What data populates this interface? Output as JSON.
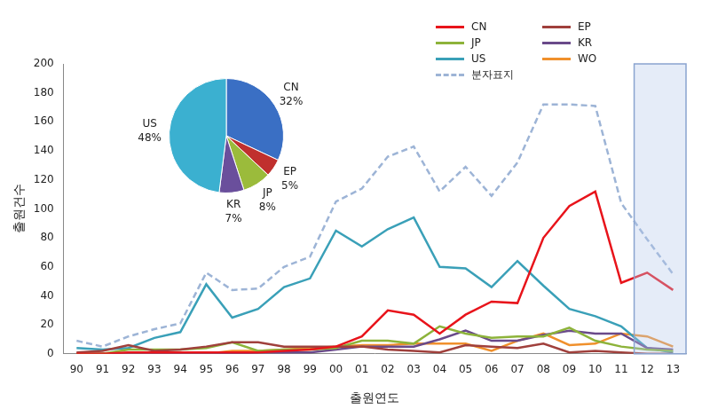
{
  "chart_data": [
    {
      "type": "line",
      "x_label": "출원연도",
      "y_label": "출원건수",
      "categories": [
        "90",
        "91",
        "92",
        "93",
        "94",
        "95",
        "96",
        "97",
        "98",
        "99",
        "00",
        "01",
        "02",
        "03",
        "04",
        "05",
        "06",
        "07",
        "08",
        "09",
        "10",
        "11",
        "12",
        "13"
      ],
      "series": [
        {
          "name": "CN",
          "color": "#e8141b",
          "values": [
            0,
            0,
            1,
            1,
            1,
            1,
            1,
            1,
            2,
            3,
            5,
            12,
            30,
            27,
            14,
            27,
            36,
            35,
            80,
            102,
            112,
            49,
            56,
            44
          ]
        },
        {
          "name": "EP",
          "color": "#a0403c",
          "values": [
            1,
            2,
            6,
            2,
            3,
            5,
            8,
            8,
            5,
            5,
            5,
            5,
            3,
            2,
            1,
            6,
            5,
            4,
            7,
            1,
            2,
            1,
            0,
            0
          ]
        },
        {
          "name": "JP",
          "color": "#8db33a",
          "values": [
            0,
            0,
            3,
            3,
            3,
            4,
            8,
            2,
            3,
            3,
            4,
            9,
            9,
            7,
            19,
            14,
            11,
            12,
            12,
            18,
            9,
            5,
            3,
            2
          ]
        },
        {
          "name": "KR",
          "color": "#6a4a8a",
          "values": [
            0,
            0,
            0,
            0,
            0,
            0,
            0,
            1,
            1,
            1,
            3,
            5,
            5,
            5,
            10,
            16,
            9,
            9,
            13,
            16,
            14,
            14,
            4,
            3
          ]
        },
        {
          "name": "US",
          "color": "#3aa0b8",
          "values": [
            4,
            3,
            4,
            11,
            15,
            48,
            25,
            31,
            46,
            52,
            85,
            74,
            86,
            94,
            60,
            59,
            46,
            64,
            47,
            31,
            26,
            19,
            4,
            1
          ]
        },
        {
          "name": "WO",
          "color": "#f0902c",
          "values": [
            0,
            0,
            0,
            0,
            0,
            0,
            2,
            2,
            3,
            4,
            5,
            6,
            6,
            7,
            7,
            7,
            2,
            9,
            14,
            6,
            7,
            14,
            12,
            5
          ]
        },
        {
          "name": "분자표지",
          "color": "#9db4d6",
          "line_style": "dashed",
          "values": [
            9,
            5,
            12,
            17,
            21,
            56,
            44,
            45,
            60,
            67,
            105,
            114,
            136,
            143,
            112,
            129,
            109,
            132,
            172,
            172,
            171,
            104,
            79,
            55
          ]
        }
      ],
      "ylim": [
        0,
        200
      ],
      "yticks": [
        0,
        20,
        40,
        60,
        80,
        100,
        120,
        140,
        160,
        180,
        200
      ],
      "grid": false,
      "legend": "upper right",
      "shaded": [
        "12",
        "13"
      ]
    },
    {
      "type": "pie",
      "categories": [
        "CN",
        "EP",
        "JP",
        "KR",
        "US"
      ],
      "values": [
        32,
        5,
        8,
        7,
        48
      ],
      "colors": [
        "#3a6fc4",
        "#c0302e",
        "#9bbb3b",
        "#6a4f9c",
        "#3bb0d0"
      ],
      "data_labels": true,
      "value_labels": [
        "32%",
        "5%",
        "8%",
        "7%",
        "48%"
      ]
    }
  ]
}
